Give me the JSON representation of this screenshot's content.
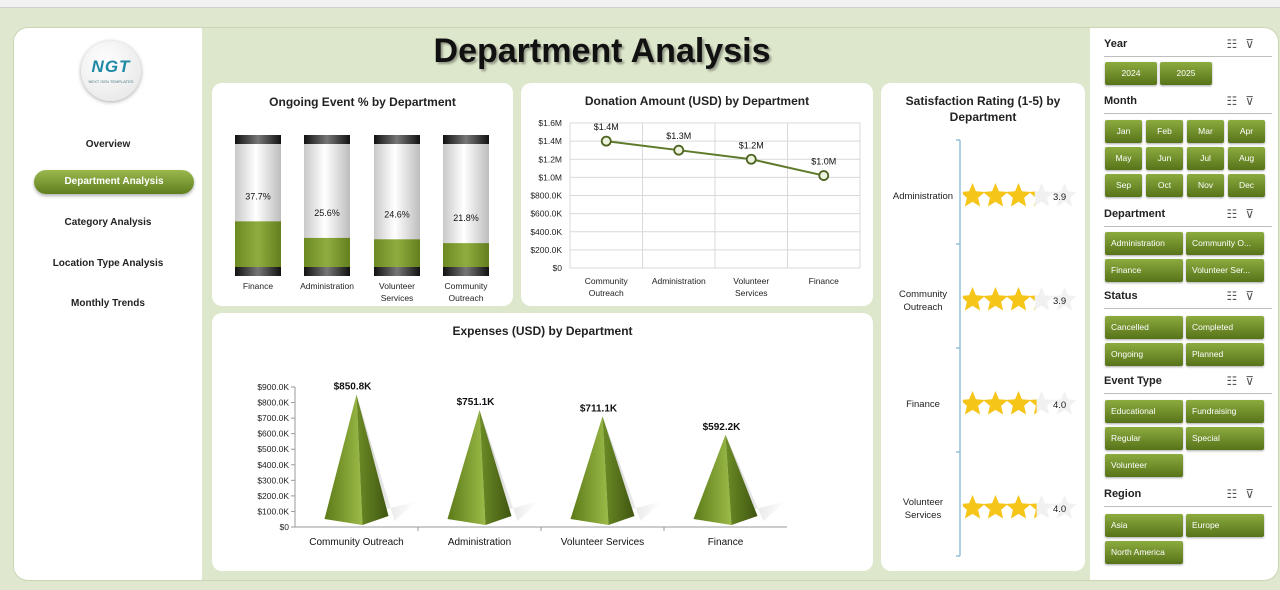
{
  "page": {
    "title": "Department Analysis"
  },
  "logo": {
    "text": "NGT",
    "subtext": "NEXT GEN TEMPLATES"
  },
  "nav": [
    {
      "label": "Overview",
      "active": false
    },
    {
      "label": "Department Analysis",
      "active": true
    },
    {
      "label": "Category Analysis",
      "active": false
    },
    {
      "label": "Location Type Analysis",
      "active": false
    },
    {
      "label": "Monthly Trends",
      "active": false
    }
  ],
  "chart_data": [
    {
      "id": "ongoing",
      "type": "bar",
      "title": "Ongoing Event % by Department",
      "categories": [
        "Finance",
        "Administration",
        "Volunteer Services",
        "Community Outreach"
      ],
      "values": [
        37.7,
        25.6,
        24.6,
        21.8
      ],
      "labels": [
        "37.7%",
        "25.6%",
        "24.6%",
        "21.8%"
      ],
      "ylim": [
        0,
        100
      ],
      "color": "#7a9a2e"
    },
    {
      "id": "donation",
      "type": "line",
      "title": "Donation Amount (USD) by Department",
      "categories": [
        "Community Outreach",
        "Administration",
        "Volunteer Services",
        "Finance"
      ],
      "values": [
        1400000,
        1300000,
        1200000,
        1020000
      ],
      "labels": [
        "$1.4M",
        "$1.3M",
        "$1.2M",
        "$1.0M"
      ],
      "ylim": [
        0,
        1600000
      ],
      "yticks": [
        "$0",
        "$200.0K",
        "$400.0K",
        "$600.0K",
        "$800.0K",
        "$1.0M",
        "$1.2M",
        "$1.4M",
        "$1.6M"
      ],
      "grid": true,
      "color": "#5f7a2a"
    },
    {
      "id": "expenses",
      "type": "bar",
      "title": "Expenses (USD) by Department",
      "categories": [
        "Community Outreach",
        "Administration",
        "Volunteer Services",
        "Finance"
      ],
      "values": [
        850800,
        751100,
        711100,
        592200
      ],
      "labels": [
        "$850.8K",
        "$751.1K",
        "$711.1K",
        "$592.2K"
      ],
      "ylim": [
        0,
        900000
      ],
      "yticks": [
        "$0",
        "$100.0K",
        "$200.0K",
        "$300.0K",
        "$400.0K",
        "$500.0K",
        "$600.0K",
        "$700.0K",
        "$800.0K",
        "$900.0K"
      ],
      "color": "#6f8f25"
    },
    {
      "id": "satisfaction",
      "type": "bar",
      "title": "Satisfaction Rating (1-5) by Department",
      "categories": [
        "Administration",
        "Community Outreach",
        "Finance",
        "Volunteer Services"
      ],
      "values": [
        3.9,
        3.9,
        4.0,
        4.0
      ],
      "labels": [
        "3.9",
        "3.9",
        "4.0",
        "4.0"
      ],
      "ylim": [
        0,
        5
      ],
      "color": "#f5c518"
    }
  ],
  "slicers": [
    {
      "title": "Year",
      "cols": 2,
      "items": [
        "2024",
        "2025"
      ]
    },
    {
      "title": "Month",
      "cols": 4,
      "items": [
        "Jan",
        "Feb",
        "Mar",
        "Apr",
        "May",
        "Jun",
        "Jul",
        "Aug",
        "Sep",
        "Oct",
        "Nov",
        "Dec"
      ]
    },
    {
      "title": "Department",
      "cols": 2,
      "items": [
        "Administration",
        "Community O...",
        "Finance",
        "Volunteer Ser..."
      ]
    },
    {
      "title": "Status",
      "cols": 2,
      "items": [
        "Cancelled",
        "Completed",
        "Ongoing",
        "Planned"
      ]
    },
    {
      "title": "Event Type",
      "cols": 2,
      "items": [
        "Educational",
        "Fundraising",
        "Regular",
        "Special",
        "Volunteer"
      ]
    },
    {
      "title": "Region",
      "cols": 2,
      "items": [
        "Asia",
        "Europe",
        "North America"
      ]
    }
  ],
  "icons": {
    "multiselect": "multi-select-icon",
    "clearfilter": "clear-filter-icon"
  }
}
